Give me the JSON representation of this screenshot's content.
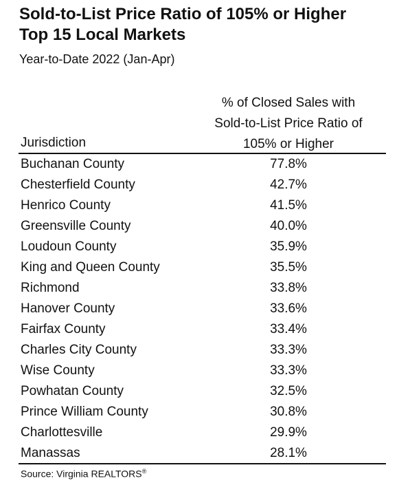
{
  "header": {
    "title_lines": [
      "Sold-to-List Price Ratio of 105% or Higher",
      "Top 15 Local Markets"
    ],
    "subtitle": "Year-to-Date 2022 (Jan-Apr)"
  },
  "table": {
    "columns": [
      "Jurisdiction",
      [
        "% of Closed Sales with",
        "Sold-to-List Price Ratio of",
        "105% or Higher"
      ]
    ],
    "rows": [
      [
        "Buchanan County",
        "77.8%"
      ],
      [
        "Chesterfield County",
        "42.7%"
      ],
      [
        "Henrico County",
        "41.5%"
      ],
      [
        "Greensville County",
        "40.0%"
      ],
      [
        "Loudoun County",
        "35.9%"
      ],
      [
        "King and Queen County",
        "35.5%"
      ],
      [
        "Richmond",
        "33.8%"
      ],
      [
        "Hanover County",
        "33.6%"
      ],
      [
        "Fairfax County",
        "33.4%"
      ],
      [
        "Charles City County",
        "33.3%"
      ],
      [
        "Wise County",
        "33.3%"
      ],
      [
        "Powhatan County",
        "32.5%"
      ],
      [
        "Prince William County",
        "30.8%"
      ],
      [
        "Charlottesville",
        "29.9%"
      ],
      [
        "Manassas",
        "28.1%"
      ]
    ]
  },
  "footer": {
    "source": "Source: Virginia REALTORS",
    "mark": "®"
  }
}
